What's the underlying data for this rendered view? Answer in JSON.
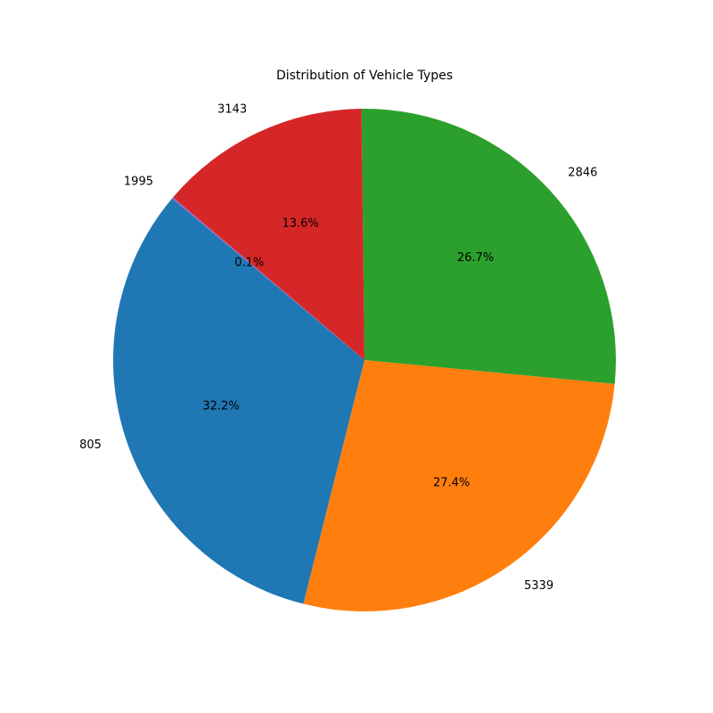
{
  "chart_data": {
    "type": "pie",
    "title": "Distribution of Vehicle Types",
    "slices": [
      {
        "label": "805",
        "percent": 32.2,
        "color": "#1f77b4"
      },
      {
        "label": "5339",
        "percent": 27.4,
        "color": "#ff7f0e"
      },
      {
        "label": "2846",
        "percent": 26.7,
        "color": "#2ca02c"
      },
      {
        "label": "3143",
        "percent": 13.6,
        "color": "#d62728"
      },
      {
        "label": "1995",
        "percent": 0.1,
        "color": "#9467bd"
      }
    ],
    "percent_labels": [
      "32.2%",
      "27.4%",
      "26.7%",
      "13.6%",
      "0.1%"
    ],
    "start_angle_deg": 140,
    "direction": "counterclockwise"
  }
}
